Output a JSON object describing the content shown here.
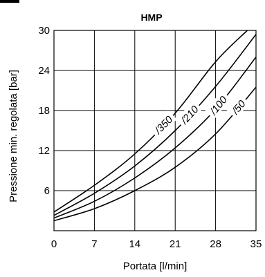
{
  "chart_data": {
    "type": "line",
    "title": "HMP",
    "xlabel": "Portata [l/min]",
    "ylabel": "Pressione min. regolata [bar]",
    "xlim": [
      0,
      35
    ],
    "ylim": [
      0,
      30
    ],
    "xticks": [
      "0",
      "7",
      "14",
      "21",
      "28",
      "35"
    ],
    "yticks": [
      "6",
      "12",
      "18",
      "24",
      "30"
    ],
    "grid": true,
    "series": [
      {
        "name": "/350",
        "x": [
          0,
          7,
          14,
          21,
          28,
          33.5
        ],
        "y": [
          2.8,
          6.8,
          11.5,
          17.6,
          25.3,
          30
        ]
      },
      {
        "name": "/210",
        "x": [
          0,
          7,
          14,
          21,
          28,
          35
        ],
        "y": [
          2.3,
          5.6,
          9.7,
          15.0,
          21.6,
          29.4
        ]
      },
      {
        "name": "/100",
        "x": [
          0,
          7,
          14,
          21,
          28,
          35
        ],
        "y": [
          1.9,
          4.4,
          7.9,
          12.4,
          18.2,
          26.0
        ]
      },
      {
        "name": "/50",
        "x": [
          0,
          7,
          14,
          21,
          28,
          35
        ],
        "y": [
          1.5,
          3.3,
          6.0,
          9.5,
          14.5,
          21.5
        ]
      }
    ]
  }
}
